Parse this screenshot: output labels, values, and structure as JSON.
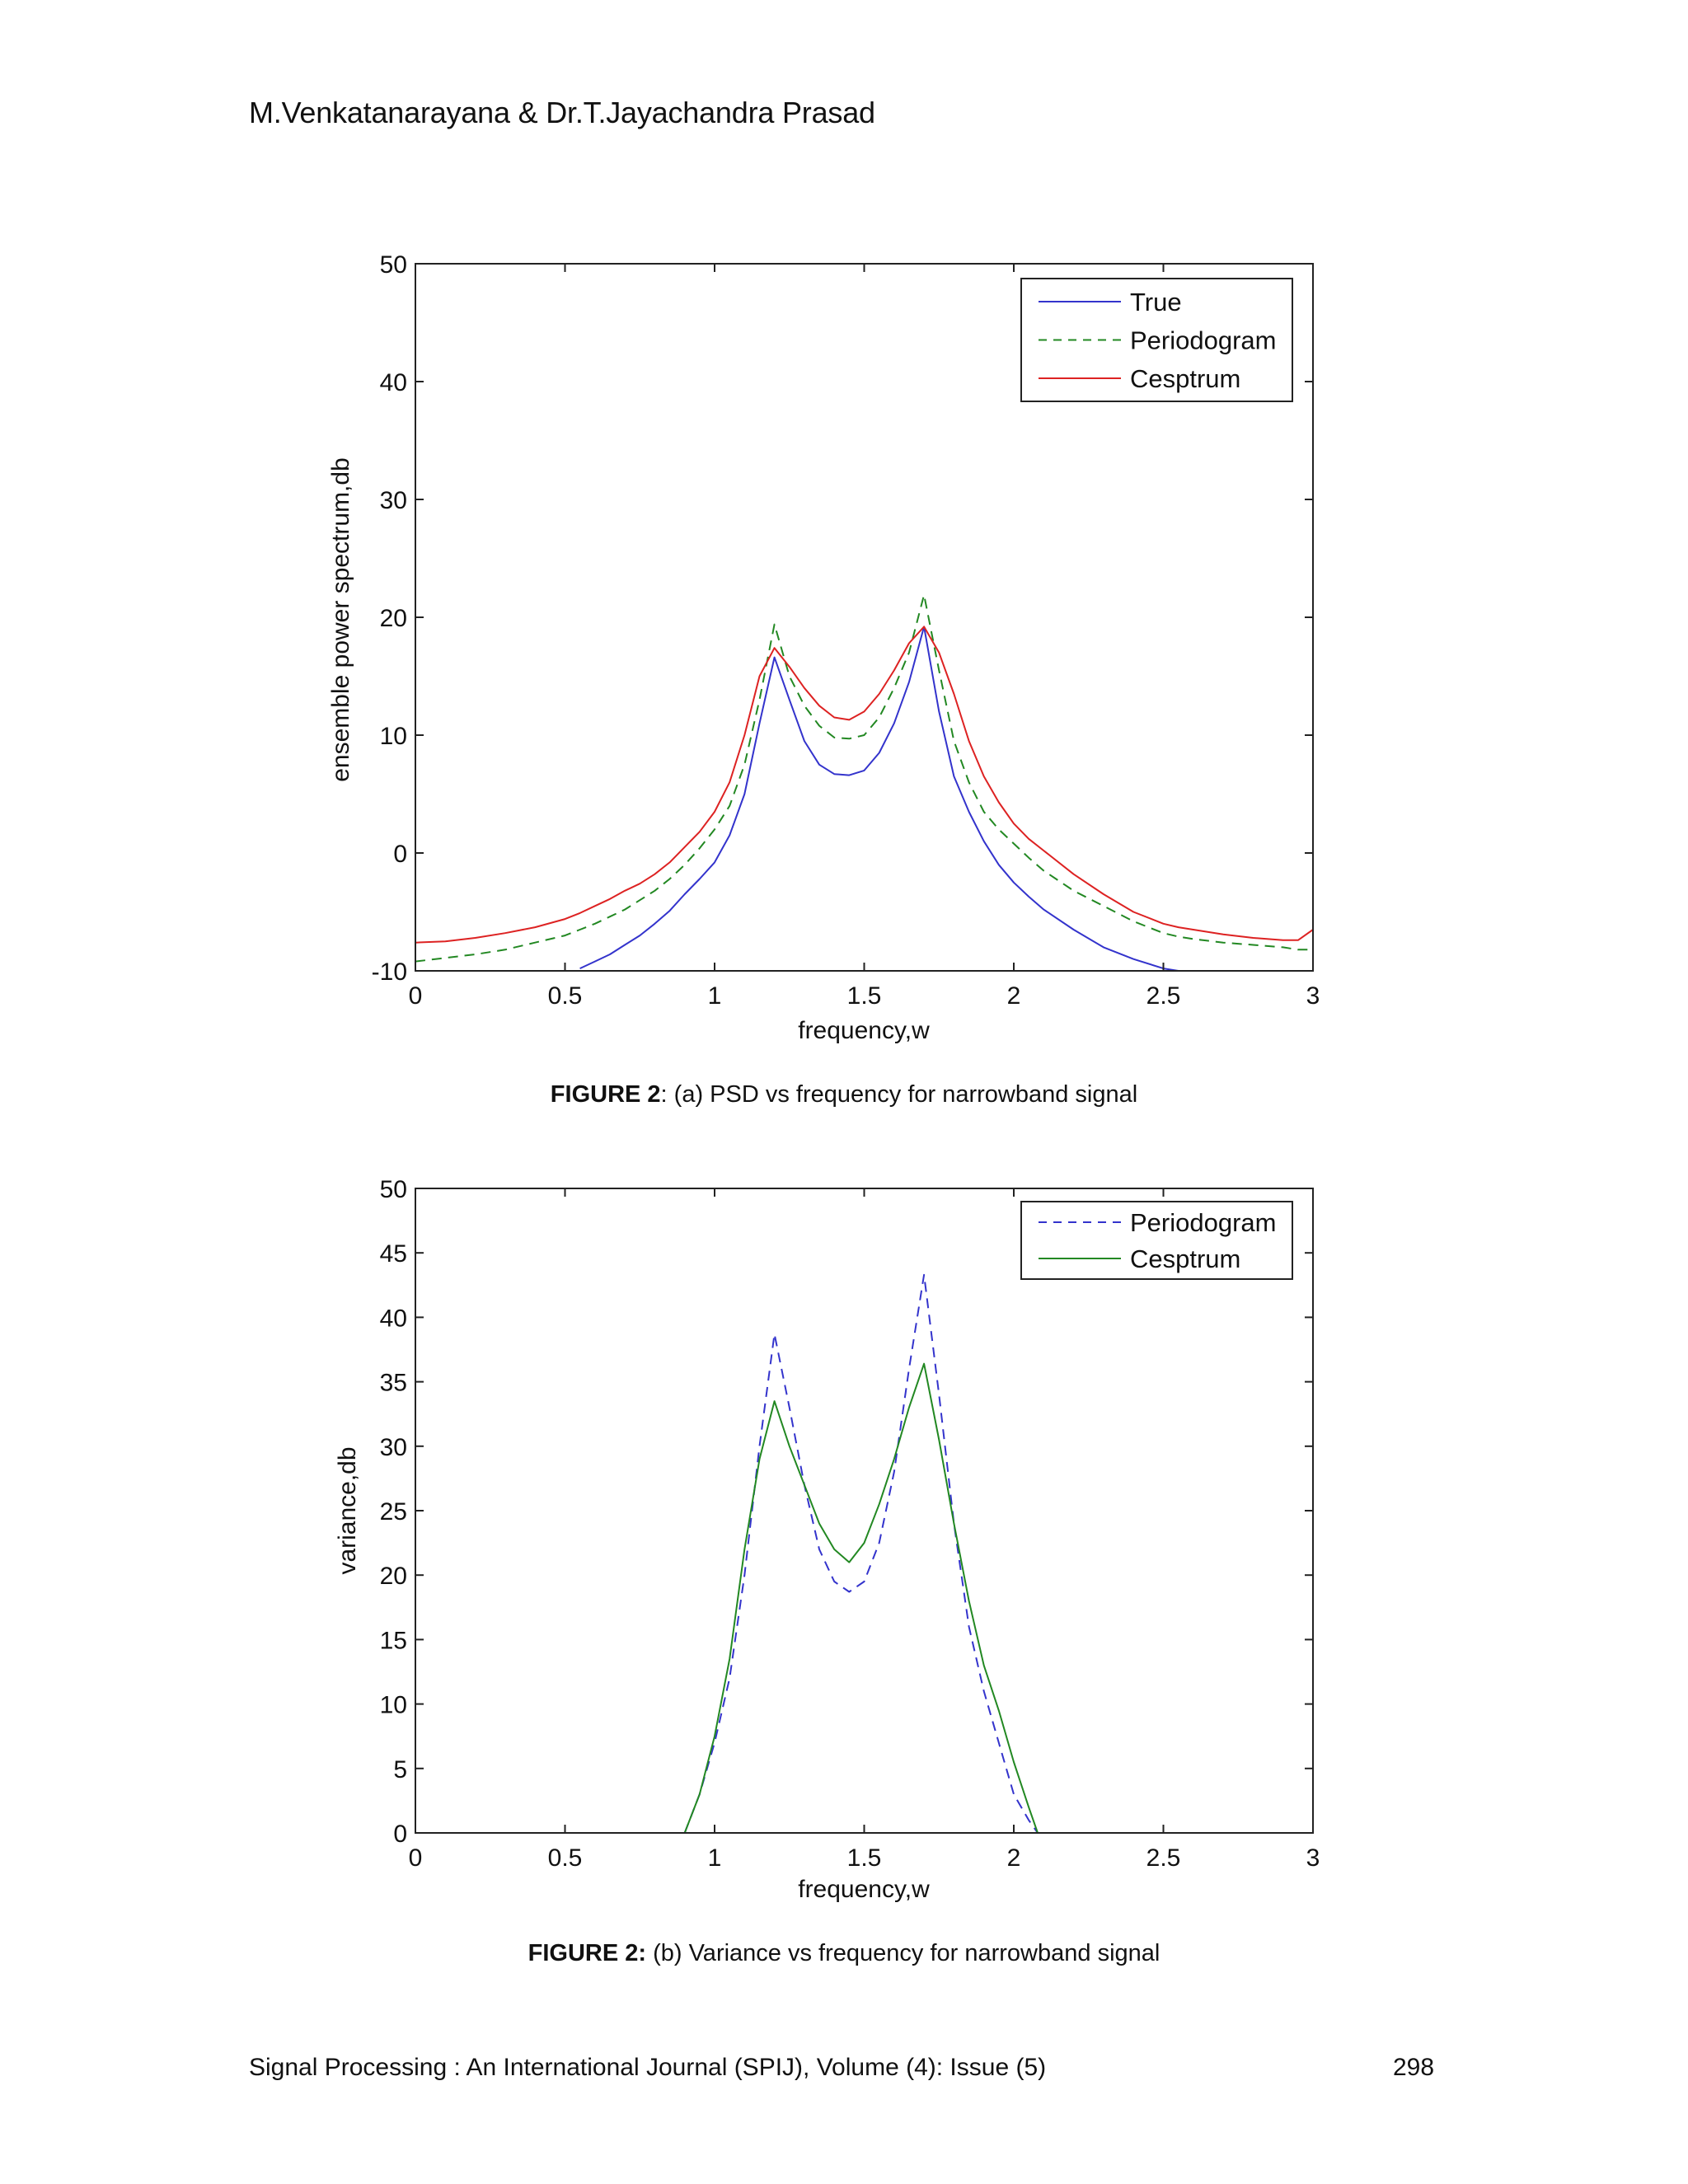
{
  "page": {
    "header": "M.Venkatanarayana & Dr.T.Jayachandra Prasad",
    "footer": "Signal Processing : An International Journal (SPIJ), Volume (4): Issue (5)",
    "page_number": "298"
  },
  "figures": [
    {
      "caption_bold": "FIGURE 2",
      "caption_rest": ": (a) PSD vs frequency for narrowband signal"
    },
    {
      "caption_bold": "FIGURE 2:",
      "caption_rest": " (b) Variance vs frequency for narrowband signal"
    }
  ],
  "chart_data": [
    {
      "type": "line",
      "title": "",
      "xlabel": "frequency,w",
      "ylabel": "ensemble power spectrum,db",
      "xlim": [
        0,
        3
      ],
      "ylim": [
        -10,
        50
      ],
      "xticks": [
        "0",
        "0.5",
        "1",
        "1.5",
        "2",
        "2.5",
        "3"
      ],
      "yticks": [
        "-10",
        "0",
        "10",
        "20",
        "30",
        "40",
        "50"
      ],
      "grid": false,
      "legend_position": "upper right",
      "x": [
        0,
        0.1,
        0.2,
        0.3,
        0.4,
        0.5,
        0.55,
        0.6,
        0.65,
        0.7,
        0.75,
        0.8,
        0.85,
        0.9,
        0.95,
        1.0,
        1.05,
        1.1,
        1.15,
        1.2,
        1.25,
        1.3,
        1.35,
        1.4,
        1.45,
        1.5,
        1.55,
        1.6,
        1.65,
        1.7,
        1.75,
        1.8,
        1.85,
        1.9,
        1.95,
        2.0,
        2.05,
        2.1,
        2.2,
        2.3,
        2.4,
        2.5,
        2.55,
        2.6,
        2.7,
        2.8,
        2.9,
        2.95,
        3.0
      ],
      "series": [
        {
          "name": "True",
          "color": "#3333cc",
          "dash": "solid",
          "values": [
            null,
            null,
            null,
            null,
            null,
            null,
            -9.8,
            -9.2,
            -8.6,
            -7.8,
            -7.0,
            -6.0,
            -4.9,
            -3.5,
            -2.2,
            -0.8,
            1.5,
            5.0,
            11.0,
            16.6,
            13.0,
            9.5,
            7.5,
            6.7,
            6.6,
            7.0,
            8.5,
            11.0,
            14.5,
            19.2,
            12.0,
            6.5,
            3.5,
            1.0,
            -1.0,
            -2.5,
            -3.7,
            -4.8,
            -6.5,
            -8.0,
            -9.0,
            -9.8,
            -10.0,
            null,
            null,
            null,
            null,
            null,
            null
          ]
        },
        {
          "name": "Periodogram",
          "color": "#228822",
          "dash": "dashed",
          "values": [
            -9.2,
            -8.9,
            -8.6,
            -8.2,
            -7.6,
            -7.0,
            -6.5,
            -6.0,
            -5.4,
            -4.8,
            -4.0,
            -3.2,
            -2.2,
            -1.0,
            0.4,
            2.0,
            4.0,
            7.5,
            13.0,
            19.4,
            15.0,
            12.5,
            10.8,
            9.8,
            9.7,
            10.0,
            11.5,
            14.0,
            17.0,
            21.9,
            15.5,
            9.5,
            6.0,
            3.5,
            2.0,
            0.8,
            -0.4,
            -1.5,
            -3.2,
            -4.5,
            -5.8,
            -6.8,
            -7.1,
            -7.3,
            -7.6,
            -7.8,
            -8.0,
            -8.2,
            -8.2
          ]
        },
        {
          "name": "Cesptrum",
          "color": "#dd2222",
          "dash": "solid",
          "values": [
            -7.6,
            -7.5,
            -7.2,
            -6.8,
            -6.3,
            -5.6,
            -5.1,
            -4.5,
            -3.9,
            -3.2,
            -2.6,
            -1.8,
            -0.8,
            0.5,
            1.8,
            3.5,
            6.0,
            10.0,
            15.0,
            17.4,
            15.8,
            14.0,
            12.5,
            11.5,
            11.3,
            12.0,
            13.5,
            15.5,
            17.8,
            19.2,
            17.0,
            13.5,
            9.5,
            6.5,
            4.3,
            2.5,
            1.2,
            0.2,
            -1.8,
            -3.5,
            -5.0,
            -6.0,
            -6.3,
            -6.5,
            -6.9,
            -7.2,
            -7.4,
            -7.4,
            -6.5
          ]
        }
      ]
    },
    {
      "type": "line",
      "title": "",
      "xlabel": "frequency,w",
      "ylabel": "variance,db",
      "xlim": [
        0,
        3
      ],
      "ylim": [
        0,
        50
      ],
      "xticks": [
        "0",
        "0.5",
        "1",
        "1.5",
        "2",
        "2.5",
        "3"
      ],
      "yticks": [
        "0",
        "5",
        "10",
        "15",
        "20",
        "25",
        "30",
        "35",
        "40",
        "45",
        "50"
      ],
      "grid": false,
      "legend_position": "upper right",
      "x": [
        0.9,
        0.95,
        1.0,
        1.05,
        1.1,
        1.15,
        1.2,
        1.25,
        1.3,
        1.35,
        1.4,
        1.45,
        1.5,
        1.55,
        1.6,
        1.65,
        1.7,
        1.75,
        1.8,
        1.85,
        1.9,
        1.95,
        2.0,
        2.05,
        2.08
      ],
      "series": [
        {
          "name": "Periodogram",
          "color": "#3333cc",
          "dash": "dashed",
          "values": [
            0,
            3.0,
            7.0,
            12.0,
            20.0,
            30.0,
            38.7,
            33.0,
            27.0,
            22.0,
            19.5,
            18.7,
            19.5,
            22.5,
            28.0,
            36.0,
            43.3,
            34.0,
            24.0,
            16.0,
            11.0,
            7.0,
            3.0,
            1.0,
            0
          ]
        },
        {
          "name": "Cesptrum",
          "color": "#228822",
          "dash": "solid",
          "values": [
            0,
            3.0,
            7.5,
            13.5,
            22.0,
            29.0,
            33.5,
            30.0,
            27.0,
            24.0,
            22.0,
            21.0,
            22.5,
            25.5,
            29.0,
            33.0,
            36.4,
            30.5,
            24.0,
            18.0,
            13.0,
            9.5,
            5.5,
            2.0,
            0
          ]
        }
      ]
    }
  ]
}
